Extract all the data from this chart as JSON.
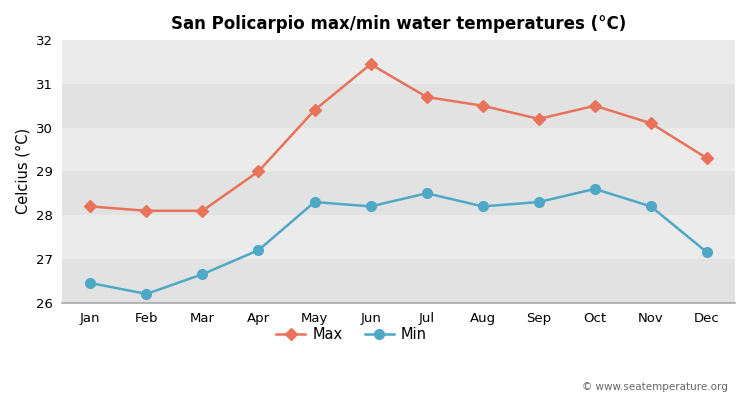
{
  "months": [
    "Jan",
    "Feb",
    "Mar",
    "Apr",
    "May",
    "Jun",
    "Jul",
    "Aug",
    "Sep",
    "Oct",
    "Nov",
    "Dec"
  ],
  "max_temps": [
    28.2,
    28.1,
    28.1,
    29.0,
    30.4,
    31.45,
    30.7,
    30.5,
    30.2,
    30.5,
    30.1,
    29.3
  ],
  "min_temps": [
    26.45,
    26.2,
    26.65,
    27.2,
    28.3,
    28.2,
    28.5,
    28.2,
    28.3,
    28.6,
    28.2,
    27.15
  ],
  "max_color": "#e8735a",
  "min_color": "#4fa8c5",
  "title": "San Policarpio max/min water temperatures (°C)",
  "ylabel": "Celcius (°C)",
  "ylim": [
    26,
    32
  ],
  "yticks": [
    26,
    27,
    28,
    29,
    30,
    31,
    32
  ],
  "fig_bg_color": "#ffffff",
  "band_dark": "#e2e2e2",
  "band_light": "#ebebeb",
  "legend_max": "Max",
  "legend_min": "Min",
  "watermark": "© www.seatemperature.org"
}
